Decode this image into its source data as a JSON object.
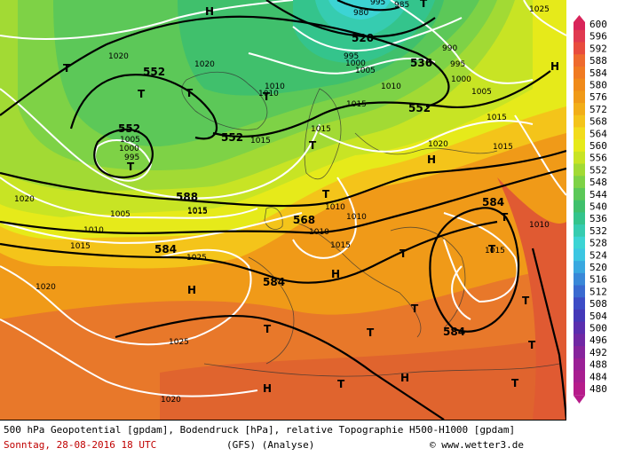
{
  "footer": {
    "title": "500 hPa Geopotential [gpdam], Bodendruck [hPa], relative Topographie H500-H1000 [gpdam]",
    "date": "Sonntag, 28-08-2016  18 UTC",
    "model": "(GFS)  (Analyse)",
    "copyright": "© www.wetter3.de"
  },
  "legend": {
    "values": [
      "600",
      "596",
      "592",
      "588",
      "584",
      "580",
      "576",
      "572",
      "568",
      "564",
      "560",
      "556",
      "552",
      "548",
      "544",
      "540",
      "536",
      "532",
      "528",
      "524",
      "520",
      "516",
      "512",
      "508",
      "504",
      "500",
      "496",
      "492",
      "488",
      "484",
      "480"
    ],
    "colors": [
      "#d8245a",
      "#e03a50",
      "#e84c3e",
      "#ee6a2e",
      "#f07a22",
      "#f08a1a",
      "#f09a18",
      "#f2ae18",
      "#f4c41a",
      "#f2dc1c",
      "#e6ea1a",
      "#c8e424",
      "#a2da34",
      "#7ed246",
      "#5cc858",
      "#40c06c",
      "#34c48c",
      "#36ccb0",
      "#3cd4d4",
      "#3cc6e2",
      "#3aa8e0",
      "#3a88d8",
      "#3a6ad0",
      "#3c4cc6",
      "#4438b8",
      "#5a2eae",
      "#7028a4",
      "#86249c",
      "#9a2096",
      "#a81e90",
      "#b61c8a"
    ]
  },
  "highs": [
    "H",
    "H",
    "H",
    "H",
    "H",
    "H",
    "H"
  ],
  "lows": [
    "T",
    "T",
    "T",
    "T",
    "T",
    "T",
    "T",
    "T",
    "T",
    "T",
    "T",
    "T",
    "T",
    "T",
    "T",
    "T",
    "T",
    "T"
  ],
  "geopotential_labels": [
    "552",
    "552",
    "552",
    "520",
    "536",
    "552",
    "588",
    "568",
    "584",
    "584",
    "584",
    "584"
  ],
  "pressure_labels": [
    "1020",
    "1020",
    "1010",
    "1010",
    "995",
    "1000",
    "1005",
    "1010",
    "990",
    "995",
    "1000",
    "1005",
    "1015",
    "1020",
    "1015",
    "1015",
    "1010",
    "1010",
    "1015",
    "1015",
    "1015",
    "1005",
    "995",
    "1000",
    "1005",
    "1015",
    "1010",
    "1020",
    "1010",
    "1015",
    "1015",
    "1025",
    "1020",
    "1025",
    "1020",
    "995",
    "980",
    "985",
    "1015",
    "1010",
    "1025"
  ]
}
